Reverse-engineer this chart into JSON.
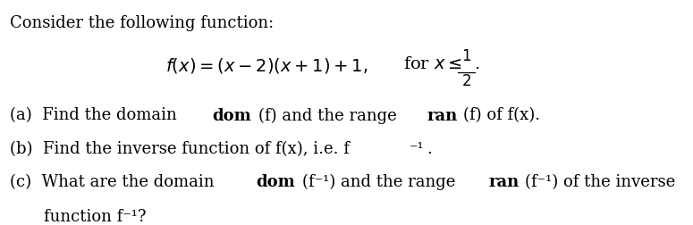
{
  "background_color": "#ffffff",
  "title_line": "Consider the following function:",
  "formula": "f(x) = (x – 2)(x + 1) + 1,  for x ≤ ½.",
  "line_a": [
    "(a) Find the domain ",
    "dom",
    "(f)",
    " and the range ",
    "ran",
    "(f)",
    " of f(x)."
  ],
  "line_b": [
    "(b) Find the inverse function of f(x), i.e. f⁻¹."
  ],
  "line_c1": [
    "(c) What are the domain ",
    "dom",
    "(f⁻¹)",
    " and the range ",
    "ran",
    "(f⁻¹)",
    " of the inverse"
  ],
  "line_c2": [
    "   function f⁻¹?"
  ],
  "font_size": 13,
  "formula_font_size": 14
}
